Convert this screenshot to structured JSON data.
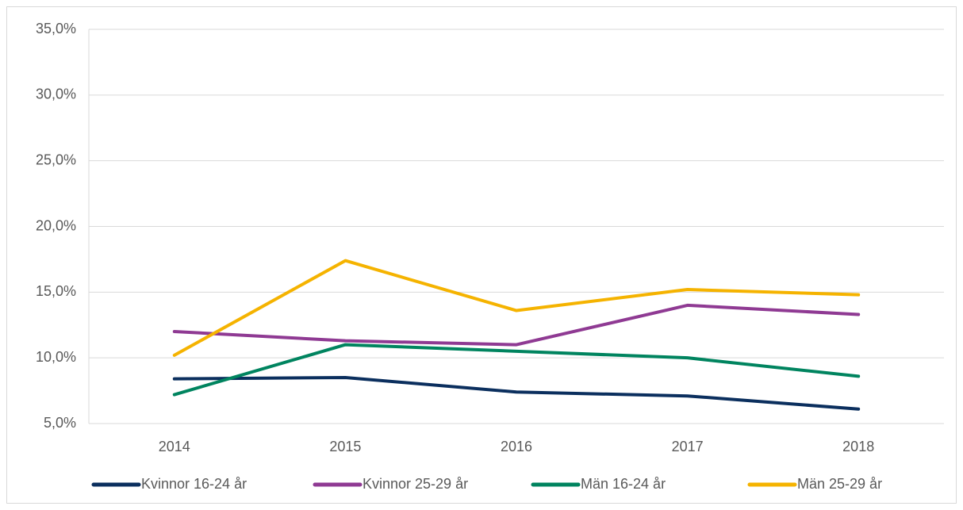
{
  "chart_data": {
    "type": "line",
    "categories": [
      "2014",
      "2015",
      "2016",
      "2017",
      "2018"
    ],
    "series": [
      {
        "name": "Kvinnor 16-24 år",
        "color": "#0b2f5e",
        "values": [
          8.4,
          8.5,
          7.4,
          7.1,
          6.1
        ]
      },
      {
        "name": "Kvinnor 25-29 år",
        "color": "#8f3a93",
        "values": [
          12.0,
          11.3,
          11.0,
          14.0,
          13.3
        ]
      },
      {
        "name": "Män 16-24 år",
        "color": "#00845f",
        "values": [
          7.2,
          11.0,
          10.5,
          10.0,
          8.6
        ]
      },
      {
        "name": "Män 25-29 år",
        "color": "#f5b300",
        "values": [
          10.2,
          17.4,
          13.6,
          15.2,
          14.8
        ]
      }
    ],
    "ylim": [
      5,
      35
    ],
    "yticks": [
      {
        "value": 5,
        "label": "5,0%"
      },
      {
        "value": 10,
        "label": "10,0%"
      },
      {
        "value": 15,
        "label": "15,0%"
      },
      {
        "value": 20,
        "label": "20,0%"
      },
      {
        "value": 25,
        "label": "25,0%"
      },
      {
        "value": 30,
        "label": "30,0%"
      },
      {
        "value": 35,
        "label": "35,0%"
      }
    ],
    "grid": true,
    "legend": "bottom"
  }
}
